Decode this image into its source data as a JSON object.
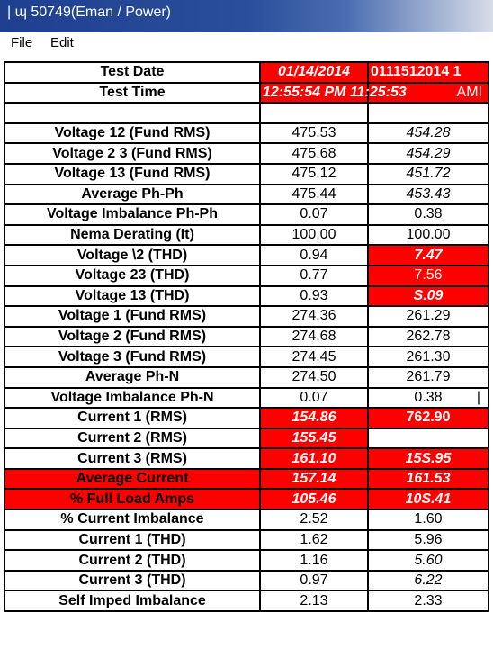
{
  "window": {
    "title": "| ɰ 50749(Eman / Power)"
  },
  "menu": {
    "file": "File",
    "edit": "Edit"
  },
  "rows": [
    {
      "label": "Test Date",
      "v1": "01/14/2014",
      "v2": "0111512014 1"
    },
    {
      "label": "Test Time",
      "v1": "12:55:54 PM 11:25:53",
      "v2": "AMI"
    },
    {
      "label": "",
      "v1": "",
      "v2": ""
    },
    {
      "label": "Voltage 12 (Fund RMS)",
      "v1": "475.53",
      "v2": "454.28"
    },
    {
      "label": "Voltage 2 3 (Fund RMS)",
      "v1": "475.68",
      "v2": "454.29"
    },
    {
      "label": "Voltage 13 (Fund RMS)",
      "v1": "475.12",
      "v2": "451.72"
    },
    {
      "label": "Average Ph-Ph",
      "v1": "475.44",
      "v2": "453.43"
    },
    {
      "label": "Voltage Imbalance Ph-Ph",
      "v1": "0.07",
      "v2": "0.38"
    },
    {
      "label": "Nema Derating (It)",
      "v1": "100.00",
      "v2": "100.00"
    },
    {
      "label": "Voltage \\2 (THD)",
      "v1": "0.94",
      "v2": "7.47"
    },
    {
      "label": "Voltage 23 (THD)",
      "v1": "0.77",
      "v2": "7.56"
    },
    {
      "label": "Voltage 13 (THD)",
      "v1": "0.93",
      "v2": "S.09"
    },
    {
      "label": "Voltage 1 (Fund RMS)",
      "v1": "274.36",
      "v2": "261.29"
    },
    {
      "label": "Voltage 2 (Fund RMS)",
      "v1": "274.68",
      "v2": "262.78"
    },
    {
      "label": "Voltage 3 (Fund RMS)",
      "v1": "274.45",
      "v2": "261.30"
    },
    {
      "label": "Average Ph-N",
      "v1": "274.50",
      "v2": "261.79"
    },
    {
      "label": "Voltage Imbalance Ph-N",
      "v1": "0.07",
      "v2": "0.38",
      "v2_suffix": "|"
    },
    {
      "label": "Current 1 (RMS)",
      "v1": "154.86",
      "v2": "762.90"
    },
    {
      "label": "Current 2 (RMS)",
      "v1": "155.45",
      "v2": ""
    },
    {
      "label": "Current 3 (RMS)",
      "v1": "161.10",
      "v2": "15S.95"
    },
    {
      "label": "Average Current",
      "v1": "157.14",
      "v2": "161.53"
    },
    {
      "label": "% Full Load Amps",
      "v1": "105.46",
      "v2": "10S.41"
    },
    {
      "label": "% Current Imbalance",
      "v1": "2.52",
      "v2": "1.60"
    },
    {
      "label": "Current 1 (THD)",
      "v1": "1.62",
      "v2": "5.96"
    },
    {
      "label": "Current 2 (THD)",
      "v1": "1.16",
      "v2": "5.60"
    },
    {
      "label": "Current 3 (THD)",
      "v1": "0.97",
      "v2": "6.22"
    },
    {
      "label": "Self Imped Imbalance",
      "v1": "2.13",
      "v2": "2.33"
    }
  ],
  "colors": {
    "highlight": "#ff0000",
    "titlebar": "#1f3f8f"
  }
}
